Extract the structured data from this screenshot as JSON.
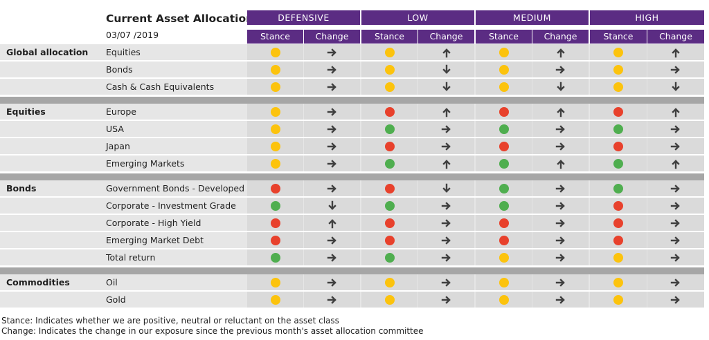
{
  "title": "Current Asset Allocation",
  "date": "03/07 /2019",
  "groups": [
    "DEFENSIVE",
    "LOW",
    "MEDIUM",
    "HIGH"
  ],
  "subheaders": {
    "stance": "Stance",
    "change": "Change"
  },
  "colors": {
    "header": "#5b2c83",
    "yellow": "#fcc30d",
    "red": "#e8412c",
    "green": "#4fae4f",
    "arrow": "#3f3f3f"
  },
  "sections": [
    {
      "name": "Global allocation",
      "rows": [
        {
          "asset": "Equities",
          "cells": [
            [
              "yellow",
              "right"
            ],
            [
              "yellow",
              "up"
            ],
            [
              "yellow",
              "up"
            ],
            [
              "yellow",
              "up"
            ]
          ]
        },
        {
          "asset": "Bonds",
          "cells": [
            [
              "yellow",
              "right"
            ],
            [
              "yellow",
              "down"
            ],
            [
              "yellow",
              "right"
            ],
            [
              "yellow",
              "right"
            ]
          ]
        },
        {
          "asset": "Cash & Cash Equivalents",
          "cells": [
            [
              "yellow",
              "right"
            ],
            [
              "yellow",
              "down"
            ],
            [
              "yellow",
              "down"
            ],
            [
              "yellow",
              "down"
            ]
          ]
        }
      ]
    },
    {
      "name": "Equities",
      "rows": [
        {
          "asset": "Europe",
          "cells": [
            [
              "yellow",
              "right"
            ],
            [
              "red",
              "up"
            ],
            [
              "red",
              "up"
            ],
            [
              "red",
              "up"
            ]
          ]
        },
        {
          "asset": "USA",
          "cells": [
            [
              "yellow",
              "right"
            ],
            [
              "green",
              "right"
            ],
            [
              "green",
              "right"
            ],
            [
              "green",
              "right"
            ]
          ]
        },
        {
          "asset": "Japan",
          "cells": [
            [
              "yellow",
              "right"
            ],
            [
              "red",
              "right"
            ],
            [
              "red",
              "right"
            ],
            [
              "red",
              "right"
            ]
          ]
        },
        {
          "asset": "Emerging Markets",
          "cells": [
            [
              "yellow",
              "right"
            ],
            [
              "green",
              "up"
            ],
            [
              "green",
              "up"
            ],
            [
              "green",
              "up"
            ]
          ]
        }
      ]
    },
    {
      "name": "Bonds",
      "rows": [
        {
          "asset": "Government Bonds - Developed",
          "cells": [
            [
              "red",
              "right"
            ],
            [
              "red",
              "down"
            ],
            [
              "green",
              "right"
            ],
            [
              "green",
              "right"
            ]
          ]
        },
        {
          "asset": "Corporate - Investment Grade",
          "cells": [
            [
              "green",
              "down"
            ],
            [
              "green",
              "right"
            ],
            [
              "green",
              "right"
            ],
            [
              "red",
              "right"
            ]
          ]
        },
        {
          "asset": "Corporate - High Yield",
          "cells": [
            [
              "red",
              "up"
            ],
            [
              "red",
              "right"
            ],
            [
              "red",
              "right"
            ],
            [
              "red",
              "right"
            ]
          ]
        },
        {
          "asset": "Emerging Market Debt",
          "cells": [
            [
              "red",
              "right"
            ],
            [
              "red",
              "right"
            ],
            [
              "red",
              "right"
            ],
            [
              "red",
              "right"
            ]
          ]
        },
        {
          "asset": "Total return",
          "cells": [
            [
              "green",
              "right"
            ],
            [
              "green",
              "right"
            ],
            [
              "yellow",
              "right"
            ],
            [
              "yellow",
              "right"
            ]
          ]
        }
      ]
    },
    {
      "name": "Commodities",
      "rows": [
        {
          "asset": "Oil",
          "cells": [
            [
              "yellow",
              "right"
            ],
            [
              "yellow",
              "right"
            ],
            [
              "yellow",
              "right"
            ],
            [
              "yellow",
              "right"
            ]
          ]
        },
        {
          "asset": "Gold",
          "cells": [
            [
              "yellow",
              "right"
            ],
            [
              "yellow",
              "right"
            ],
            [
              "yellow",
              "right"
            ],
            [
              "yellow",
              "right"
            ]
          ]
        }
      ]
    }
  ],
  "footnotes": [
    "Stance: Indicates whether we are positive, neutral or reluctant on the asset class",
    "Change: Indicates the change in our exposure since the previous month's asset allocation committee"
  ]
}
